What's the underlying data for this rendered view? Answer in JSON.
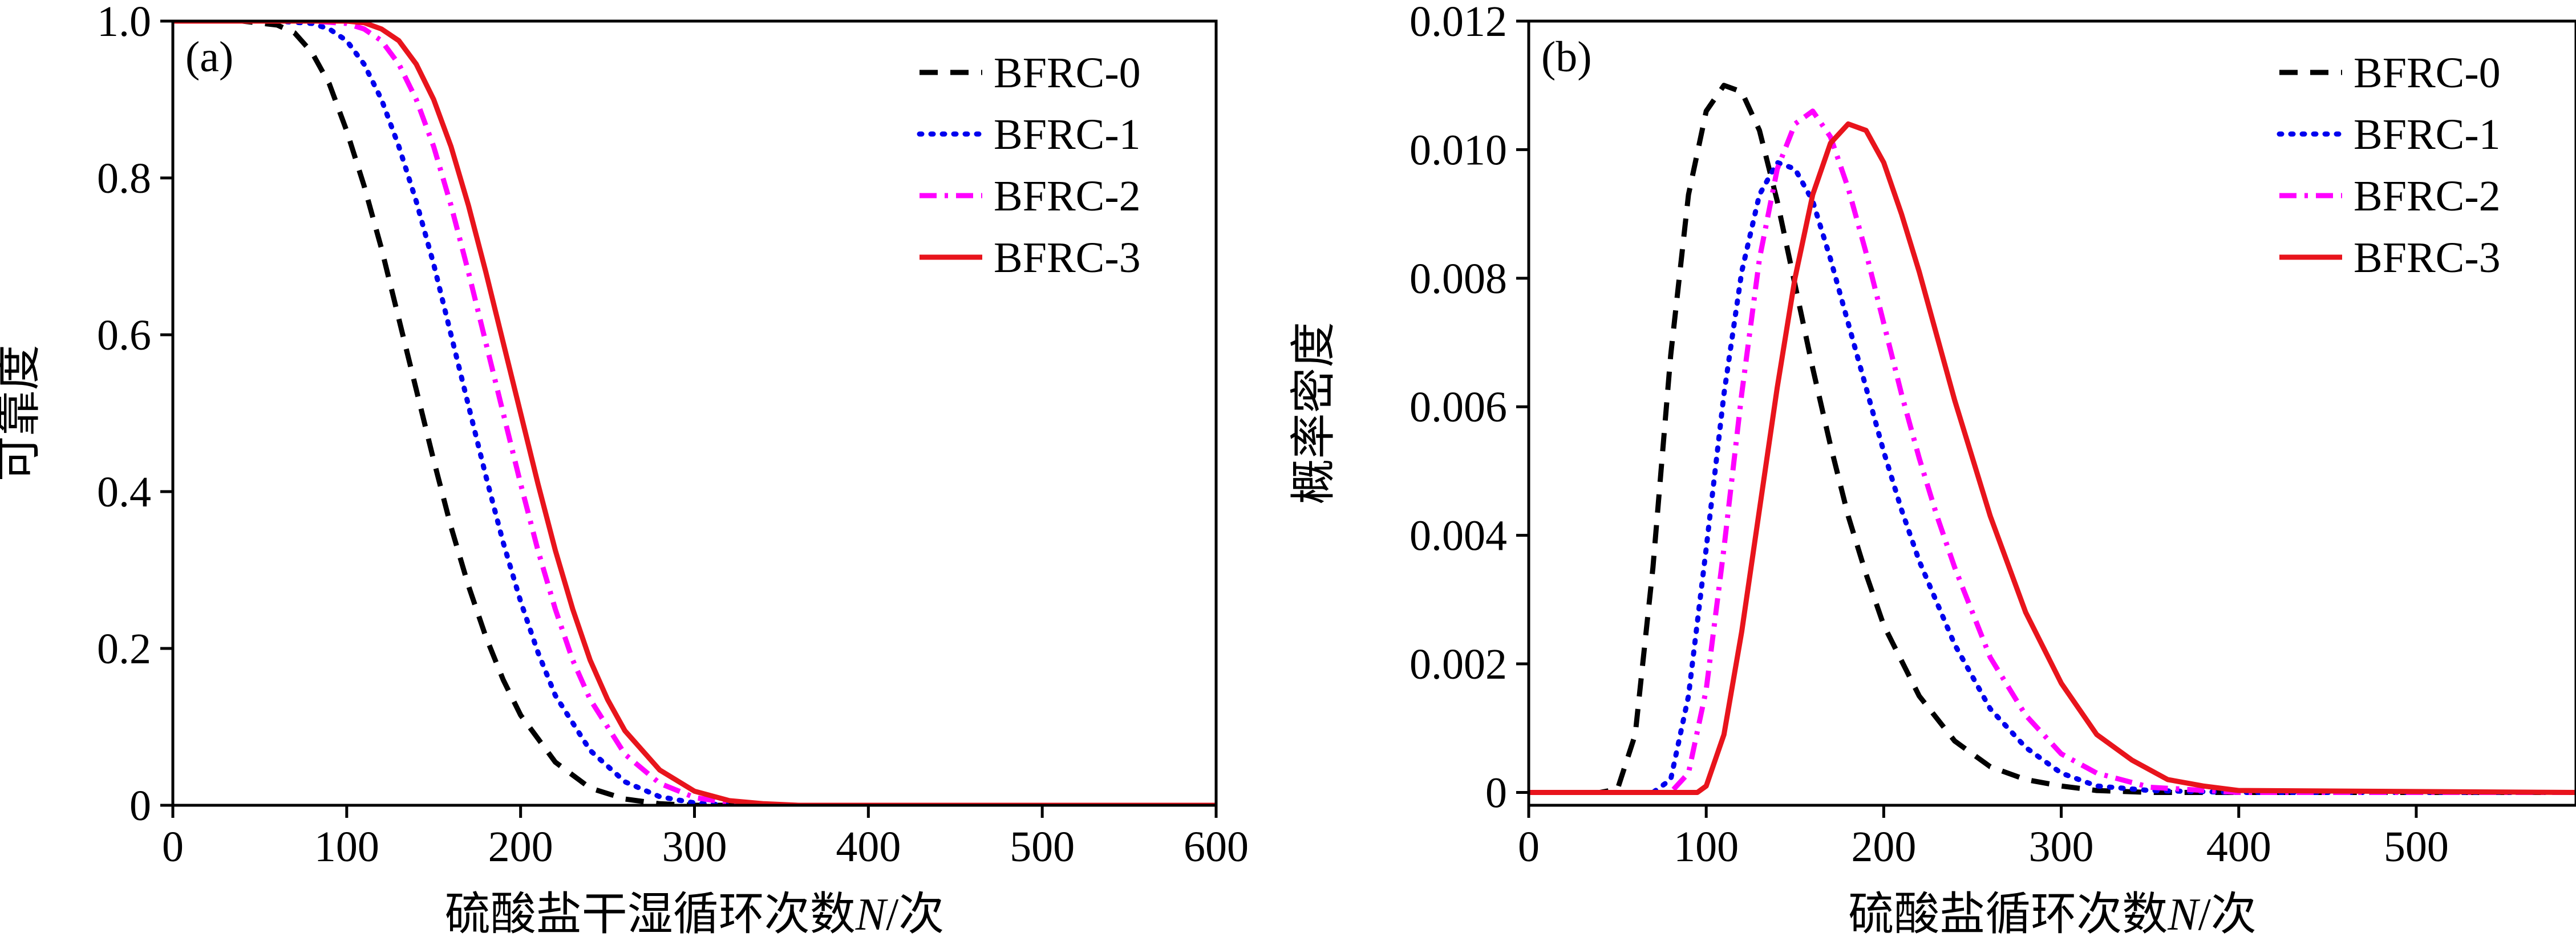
{
  "chart_data": [
    {
      "panel_label": "(a)",
      "type": "line",
      "title": "",
      "xlabel": "硫酸盐干湿循环次数",
      "xlabel_var": "N",
      "xlabel_suffix": "/次",
      "ylabel": "可靠度",
      "xlim": [
        0,
        600
      ],
      "ylim": [
        0,
        1.0
      ],
      "xticks": [
        0,
        100,
        200,
        300,
        400,
        500,
        600
      ],
      "xtick_labels": [
        "0",
        "100",
        "200",
        "300",
        "400",
        "500",
        "600"
      ],
      "yticks": [
        0,
        0.2,
        0.4,
        0.6,
        0.8,
        1.0
      ],
      "ytick_labels": [
        "0",
        "0.2",
        "0.4",
        "0.6",
        "0.8",
        "1.0"
      ],
      "legend_position": "top-right",
      "series": [
        {
          "name": "BFRC-0",
          "color": "#000000",
          "dash": "dashed",
          "x": [
            0,
            40,
            60,
            70,
            80,
            90,
            100,
            110,
            120,
            130,
            140,
            150,
            160,
            170,
            180,
            190,
            200,
            220,
            240,
            260,
            280,
            300,
            600
          ],
          "y": [
            1.0,
            1.0,
            0.995,
            0.985,
            0.96,
            0.92,
            0.86,
            0.79,
            0.71,
            0.62,
            0.53,
            0.44,
            0.355,
            0.28,
            0.215,
            0.16,
            0.115,
            0.055,
            0.022,
            0.008,
            0.002,
            0.0,
            0.0
          ]
        },
        {
          "name": "BFRC-1",
          "color": "#0000ee",
          "dash": "dotted",
          "x": [
            0,
            60,
            80,
            90,
            100,
            110,
            120,
            130,
            140,
            150,
            160,
            170,
            180,
            190,
            200,
            210,
            220,
            240,
            260,
            280,
            300,
            320,
            600
          ],
          "y": [
            1.0,
            1.0,
            0.997,
            0.99,
            0.975,
            0.945,
            0.9,
            0.84,
            0.77,
            0.69,
            0.6,
            0.51,
            0.42,
            0.335,
            0.26,
            0.195,
            0.14,
            0.07,
            0.03,
            0.011,
            0.003,
            0.0,
            0.0
          ]
        },
        {
          "name": "BFRC-2",
          "color": "#ff00ff",
          "dash": "dashdot",
          "x": [
            0,
            80,
            100,
            110,
            120,
            130,
            140,
            150,
            160,
            170,
            180,
            190,
            200,
            210,
            220,
            230,
            240,
            260,
            280,
            300,
            320,
            340,
            600
          ],
          "y": [
            1.0,
            1.0,
            0.997,
            0.99,
            0.975,
            0.945,
            0.9,
            0.84,
            0.765,
            0.68,
            0.59,
            0.5,
            0.41,
            0.325,
            0.25,
            0.185,
            0.135,
            0.065,
            0.028,
            0.01,
            0.003,
            0.0,
            0.0
          ]
        },
        {
          "name": "BFRC-3",
          "color": "#e8141c",
          "dash": "solid",
          "x": [
            0,
            100,
            110,
            120,
            130,
            140,
            150,
            160,
            170,
            180,
            190,
            200,
            210,
            220,
            230,
            240,
            250,
            260,
            280,
            300,
            320,
            340,
            360,
            600
          ],
          "y": [
            1.0,
            1.0,
            0.998,
            0.99,
            0.975,
            0.945,
            0.9,
            0.84,
            0.765,
            0.68,
            0.59,
            0.5,
            0.41,
            0.325,
            0.25,
            0.185,
            0.135,
            0.095,
            0.045,
            0.018,
            0.006,
            0.002,
            0.0,
            0.0
          ]
        }
      ]
    },
    {
      "panel_label": "(b)",
      "type": "line",
      "title": "",
      "xlabel": "硫酸盐循环次数",
      "xlabel_var": "N",
      "xlabel_suffix": "/次",
      "ylabel": "概率密度",
      "xlim": [
        0,
        590
      ],
      "ylim": [
        -0.0002,
        0.012
      ],
      "xticks": [
        0,
        100,
        200,
        300,
        400,
        500
      ],
      "xtick_labels": [
        "0",
        "100",
        "200",
        "300",
        "400",
        "500"
      ],
      "yticks": [
        0,
        0.002,
        0.004,
        0.006,
        0.008,
        0.01,
        0.012
      ],
      "ytick_labels": [
        "0",
        "0.002",
        "0.004",
        "0.006",
        "0.008",
        "0.010",
        "0.012"
      ],
      "legend_position": "top-right",
      "series": [
        {
          "name": "BFRC-0",
          "color": "#000000",
          "dash": "dashed",
          "x": [
            0,
            40,
            50,
            60,
            70,
            80,
            90,
            100,
            110,
            120,
            130,
            140,
            150,
            160,
            170,
            180,
            190,
            200,
            220,
            240,
            260,
            280,
            300,
            320,
            350,
            590
          ],
          "y": [
            0,
            0,
            5e-05,
            0.0009,
            0.0035,
            0.0068,
            0.0093,
            0.0106,
            0.011,
            0.0109,
            0.0103,
            0.0092,
            0.0079,
            0.0066,
            0.0054,
            0.0043,
            0.0034,
            0.0026,
            0.0015,
            0.0008,
            0.0004,
            0.0002,
            0.0001,
            3e-05,
            0,
            0
          ]
        },
        {
          "name": "BFRC-1",
          "color": "#0000ee",
          "dash": "dotted",
          "x": [
            0,
            70,
            80,
            90,
            100,
            110,
            120,
            130,
            140,
            150,
            160,
            170,
            180,
            190,
            200,
            210,
            220,
            240,
            260,
            280,
            300,
            320,
            350,
            400,
            590
          ],
          "y": [
            0,
            0,
            0.0002,
            0.0015,
            0.0038,
            0.0062,
            0.0081,
            0.0093,
            0.0098,
            0.0097,
            0.0092,
            0.0083,
            0.0073,
            0.0063,
            0.0053,
            0.0044,
            0.0036,
            0.0023,
            0.0013,
            0.0007,
            0.0003,
            0.0001,
            3e-05,
            0,
            0
          ]
        },
        {
          "name": "BFRC-2",
          "color": "#ff00ff",
          "dash": "dashdot",
          "x": [
            0,
            80,
            90,
            100,
            110,
            120,
            130,
            140,
            150,
            160,
            170,
            180,
            190,
            200,
            210,
            220,
            230,
            240,
            260,
            280,
            300,
            320,
            350,
            400,
            590
          ],
          "y": [
            0,
            0,
            0.0003,
            0.0016,
            0.0038,
            0.0062,
            0.0083,
            0.0097,
            0.0104,
            0.0106,
            0.0102,
            0.0094,
            0.0084,
            0.0073,
            0.0062,
            0.0052,
            0.0043,
            0.0035,
            0.0021,
            0.0012,
            0.0006,
            0.0003,
            8e-05,
            0,
            0
          ]
        },
        {
          "name": "BFRC-3",
          "color": "#e8141c",
          "dash": "solid",
          "x": [
            0,
            95,
            100,
            110,
            120,
            130,
            140,
            150,
            160,
            170,
            180,
            190,
            200,
            210,
            220,
            230,
            240,
            250,
            260,
            280,
            300,
            320,
            340,
            360,
            380,
            400,
            590
          ],
          "y": [
            0,
            0,
            0.0001,
            0.0009,
            0.0025,
            0.0044,
            0.0063,
            0.008,
            0.0093,
            0.0101,
            0.0104,
            0.0103,
            0.0098,
            0.009,
            0.0081,
            0.0071,
            0.0061,
            0.0052,
            0.0043,
            0.0028,
            0.0017,
            0.0009,
            0.0005,
            0.0002,
            0.0001,
            3e-05,
            0
          ]
        }
      ]
    }
  ]
}
